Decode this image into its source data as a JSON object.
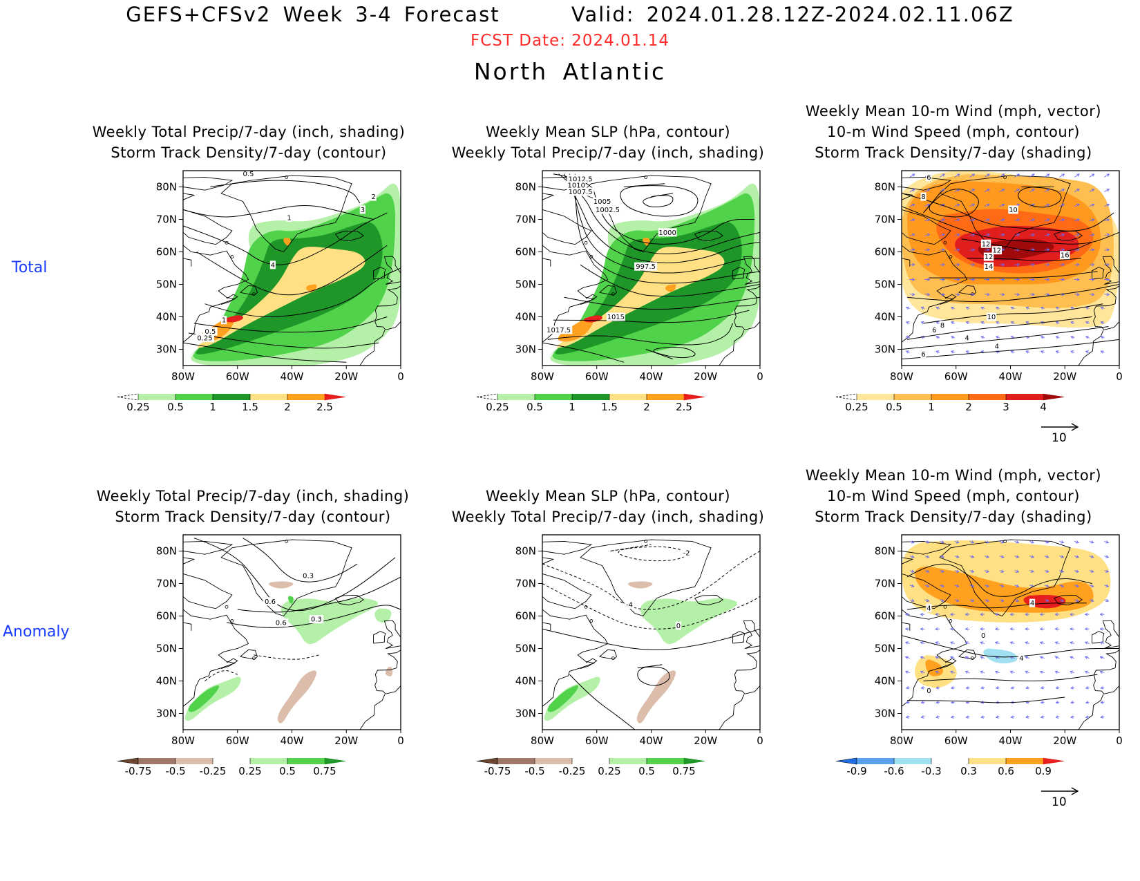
{
  "header": {
    "title": "GEFS+CFSv2 Week 3-4 Forecast      Valid: 2024.01.28.12Z-2024.02.11.06Z",
    "fcst_date": "FCST Date: 2024.01.14",
    "region": "North Atlantic"
  },
  "rows": {
    "total": "Total",
    "anomaly": "Anomaly"
  },
  "panel_titles": {
    "precip_track": "Weekly Total Precip/7-day (inch, shading)\nStorm Track Density/7-day (contour)",
    "slp_precip": "Weekly Mean SLP (hPa, contour)\nWeekly Total Precip/7-day (inch, shading)",
    "wind_track": "Weekly Mean 10-m Wind (mph, vector)\n10-m Wind Speed (mph, contour)\nStorm Track Density/7-day (shading)"
  },
  "axes": {
    "lat_labels": [
      "80N",
      "70N",
      "60N",
      "50N",
      "40N",
      "30N"
    ],
    "lon_labels": [
      "80W",
      "60W",
      "40W",
      "20W",
      "0"
    ]
  },
  "colorbars": {
    "precip_total": {
      "labels": [
        "0.25",
        "0.5",
        "1",
        "1.5",
        "2",
        "2.5"
      ],
      "colors": [
        "#ffffff",
        "#b4f0a8",
        "#50d24a",
        "#1e9628",
        "#ffe083",
        "#ffa01e",
        "#e61e1e"
      ]
    },
    "track_total": {
      "labels": [
        "0.25",
        "0.5",
        "1",
        "2",
        "3",
        "4"
      ],
      "colors": [
        "#ffffff",
        "#ffe69a",
        "#ffbf50",
        "#ff9a1e",
        "#ff6a14",
        "#e01e1e",
        "#a00a0a"
      ]
    },
    "precip_anom": {
      "labels": [
        "-0.75",
        "-0.5",
        "-0.25",
        "0.25",
        "0.5",
        "0.75"
      ],
      "colors": [
        "#6e4632",
        "#a0786a",
        "#dcbcaa",
        "#ffffff",
        "#b4f0a8",
        "#50d24a",
        "#1e9628"
      ]
    },
    "track_anom": {
      "labels": [
        "-0.9",
        "-0.6",
        "-0.3",
        "0.3",
        "0.6",
        "0.9"
      ],
      "colors": [
        "#1e6ee6",
        "#5aa0f0",
        "#a0e0f0",
        "#ffffff",
        "#ffe083",
        "#ffa01e",
        "#e61e1e"
      ]
    }
  },
  "vector_ref": "10",
  "contour_labels": {
    "p1": [
      "0.5",
      "1",
      "2",
      "3",
      "4",
      "1",
      "0.5",
      "0.25"
    ],
    "p2": [
      "1012.5",
      "1010",
      "1007.5",
      "1005",
      "1002.5",
      "1000",
      "997.5",
      "1015",
      "1017.5"
    ],
    "p3": [
      "6",
      "8",
      "10",
      "12",
      "12",
      "12",
      "14",
      "16",
      "10",
      "8",
      "6",
      "4",
      "4",
      "6"
    ],
    "p4": [
      "0.3",
      "0.6",
      "0.6",
      "0.3"
    ],
    "p5": [
      "-2",
      "-4",
      "0"
    ],
    "p6": [
      "4",
      "4",
      "0",
      "4",
      "0"
    ]
  }
}
